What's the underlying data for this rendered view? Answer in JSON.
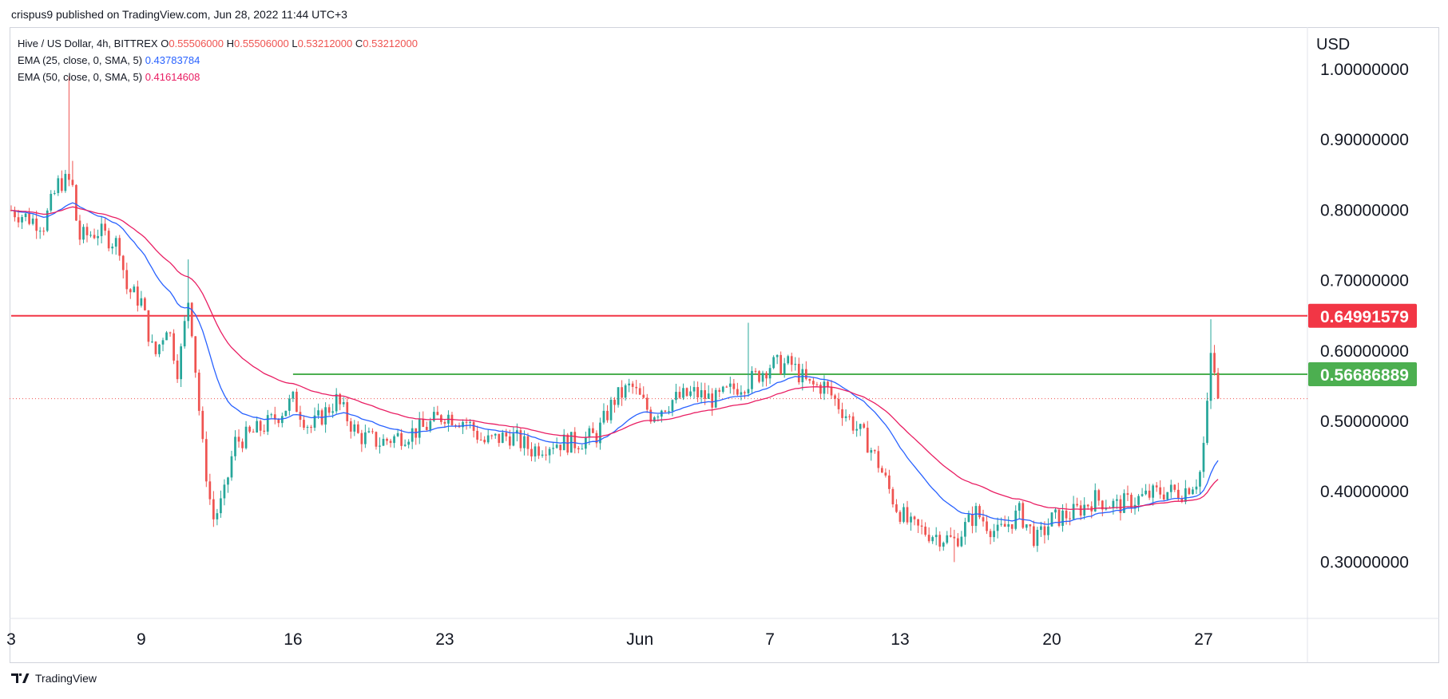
{
  "header": {
    "published": "crispus9 published on TradingView.com, Jun 28, 2022 11:44 UTC+3"
  },
  "legend": {
    "symbol": "Hive / US Dollar, 4h, BITTREX",
    "open_label": "O",
    "open": "0.55506000",
    "high_label": "H",
    "high": "0.55506000",
    "low_label": "L",
    "low": "0.53212000",
    "close_label": "C",
    "close": "0.53212000",
    "ema25_label": "EMA (25, close, 0, SMA, 5)",
    "ema25_value": "0.43783784",
    "ema50_label": "EMA (50, close, 0, SMA, 5)",
    "ema50_value": "0.41614608"
  },
  "footer": {
    "brand": "TradingView"
  },
  "colors": {
    "up": "#26a69a",
    "down": "#ef5350",
    "ema25": "#2962ff",
    "ema50": "#e91e63",
    "resistance": "#f23645",
    "support": "#4caf50"
  },
  "chart_data": {
    "type": "candlestick",
    "currency": "USD",
    "ylim": [
      0.22,
      1.06
    ],
    "y_ticks": [
      "0.30000000",
      "0.40000000",
      "0.50000000",
      "0.60000000",
      "0.70000000",
      "0.80000000",
      "0.90000000",
      "1.00000000"
    ],
    "y_tick_values": [
      0.3,
      0.4,
      0.5,
      0.6,
      0.7,
      0.8,
      0.9,
      1.0
    ],
    "x_ticks": [
      {
        "label": "3",
        "day": 0
      },
      {
        "label": "9",
        "day": 6
      },
      {
        "label": "16",
        "day": 13
      },
      {
        "label": "23",
        "day": 20
      },
      {
        "label": "Jun",
        "day": 29
      },
      {
        "label": "7",
        "day": 35
      },
      {
        "label": "13",
        "day": 41
      },
      {
        "label": "20",
        "day": 48
      },
      {
        "label": "27",
        "day": 55
      }
    ],
    "x_range_days": [
      0,
      58.5
    ],
    "horizontal_lines": [
      {
        "name": "resistance",
        "value": 0.64991579,
        "label": "0.64991579",
        "from_day": 0
      },
      {
        "name": "support",
        "value": 0.56686889,
        "label": "0.56686889",
        "from_day": 13
      }
    ],
    "last_price": 0.53212,
    "anchors": [
      {
        "day": 0.0,
        "close": 0.8
      },
      {
        "day": 0.7,
        "close": 0.79
      },
      {
        "day": 1.5,
        "close": 0.78
      },
      {
        "day": 2.2,
        "close": 0.84
      },
      {
        "day": 2.8,
        "close": 0.84
      },
      {
        "day": 3.1,
        "close": 0.76
      },
      {
        "day": 4.0,
        "close": 0.77
      },
      {
        "day": 5.0,
        "close": 0.75
      },
      {
        "day": 5.3,
        "close": 0.69
      },
      {
        "day": 6.0,
        "close": 0.67
      },
      {
        "day": 6.6,
        "close": 0.59
      },
      {
        "day": 7.2,
        "close": 0.64
      },
      {
        "day": 7.7,
        "close": 0.57
      },
      {
        "day": 8.2,
        "close": 0.68
      },
      {
        "day": 8.8,
        "close": 0.47
      },
      {
        "day": 9.3,
        "close": 0.36
      },
      {
        "day": 9.8,
        "close": 0.39
      },
      {
        "day": 10.3,
        "close": 0.47
      },
      {
        "day": 11.0,
        "close": 0.48
      },
      {
        "day": 12.0,
        "close": 0.5
      },
      {
        "day": 13.0,
        "close": 0.53
      },
      {
        "day": 13.8,
        "close": 0.49
      },
      {
        "day": 15.0,
        "close": 0.53
      },
      {
        "day": 16.0,
        "close": 0.48
      },
      {
        "day": 17.0,
        "close": 0.47
      },
      {
        "day": 18.0,
        "close": 0.48
      },
      {
        "day": 19.0,
        "close": 0.49
      },
      {
        "day": 20.0,
        "close": 0.51
      },
      {
        "day": 21.0,
        "close": 0.5
      },
      {
        "day": 21.8,
        "close": 0.47
      },
      {
        "day": 23.0,
        "close": 0.48
      },
      {
        "day": 24.0,
        "close": 0.46
      },
      {
        "day": 25.0,
        "close": 0.47
      },
      {
        "day": 26.0,
        "close": 0.47
      },
      {
        "day": 27.0,
        "close": 0.48
      },
      {
        "day": 27.8,
        "close": 0.53
      },
      {
        "day": 28.6,
        "close": 0.55
      },
      {
        "day": 29.5,
        "close": 0.51
      },
      {
        "day": 30.5,
        "close": 0.53
      },
      {
        "day": 31.5,
        "close": 0.54
      },
      {
        "day": 32.5,
        "close": 0.53
      },
      {
        "day": 33.5,
        "close": 0.55
      },
      {
        "day": 34.2,
        "close": 0.56
      },
      {
        "day": 35.0,
        "close": 0.58
      },
      {
        "day": 36.0,
        "close": 0.58
      },
      {
        "day": 36.8,
        "close": 0.55
      },
      {
        "day": 37.5,
        "close": 0.55
      },
      {
        "day": 38.5,
        "close": 0.51
      },
      {
        "day": 39.5,
        "close": 0.47
      },
      {
        "day": 40.0,
        "close": 0.44
      },
      {
        "day": 40.8,
        "close": 0.38
      },
      {
        "day": 41.5,
        "close": 0.35
      },
      {
        "day": 42.5,
        "close": 0.34
      },
      {
        "day": 43.5,
        "close": 0.33
      },
      {
        "day": 44.5,
        "close": 0.37
      },
      {
        "day": 45.5,
        "close": 0.34
      },
      {
        "day": 46.5,
        "close": 0.37
      },
      {
        "day": 47.3,
        "close": 0.33
      },
      {
        "day": 48.0,
        "close": 0.36
      },
      {
        "day": 49.0,
        "close": 0.37
      },
      {
        "day": 50.0,
        "close": 0.39
      },
      {
        "day": 51.0,
        "close": 0.38
      },
      {
        "day": 52.0,
        "close": 0.39
      },
      {
        "day": 53.0,
        "close": 0.4
      },
      {
        "day": 54.0,
        "close": 0.4
      },
      {
        "day": 54.8,
        "close": 0.42
      },
      {
        "day": 55.1,
        "close": 0.49
      },
      {
        "day": 55.35,
        "close": 0.6
      },
      {
        "day": 55.6,
        "close": 0.55
      },
      {
        "day": 55.8,
        "close": 0.532
      }
    ],
    "spikes": [
      {
        "day": 2.6,
        "high": 0.99
      },
      {
        "day": 2.8,
        "high": 0.87
      },
      {
        "day": 8.2,
        "high": 0.73
      },
      {
        "day": 9.3,
        "low": 0.35
      },
      {
        "day": 34.0,
        "high": 0.64
      },
      {
        "day": 43.5,
        "low": 0.3
      },
      {
        "day": 55.35,
        "high": 0.645
      }
    ]
  }
}
